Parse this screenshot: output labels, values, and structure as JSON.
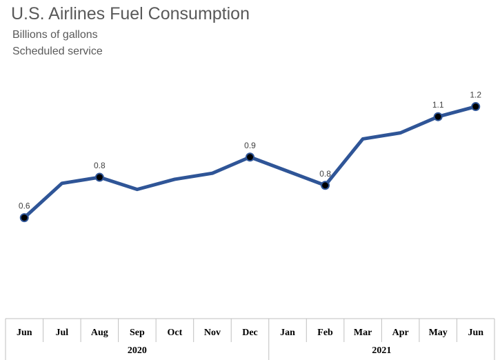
{
  "chart_data": {
    "type": "line",
    "title": "U.S. Airlines Fuel Consumption",
    "subtitle": [
      "Billions of gallons",
      "Scheduled service"
    ],
    "categories": [
      "Jun",
      "Jul",
      "Aug",
      "Sep",
      "Oct",
      "Nov",
      "Dec",
      "Jan",
      "Feb",
      "Mar",
      "Apr",
      "May",
      "Jun"
    ],
    "groups": [
      {
        "label": "2020",
        "start": 0,
        "end": 6
      },
      {
        "label": "2021",
        "start": 7,
        "end": 12
      }
    ],
    "series": [
      {
        "values": [
          0.6,
          0.77,
          0.8,
          0.74,
          0.79,
          0.82,
          0.9,
          0.83,
          0.76,
          0.99,
          1.02,
          1.1,
          1.15
        ],
        "data_labels": [
          "0.6",
          "",
          "0.8",
          "",
          "",
          "",
          "0.9",
          "",
          "0.8",
          "",
          "",
          "1.1",
          "1.2"
        ],
        "color": "#2F5597"
      }
    ],
    "ylim": [
      0.1,
      1.35
    ],
    "grid": false,
    "legend": "none"
  }
}
